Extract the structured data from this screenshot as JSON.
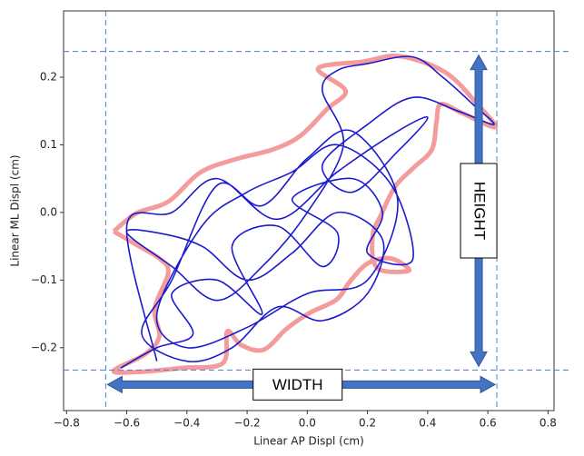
{
  "chart_data": {
    "type": "line",
    "xlabel": "Linear AP Displ (cm)",
    "ylabel": "Linear ML Displ (cm)",
    "xlim": [
      -0.81,
      0.82
    ],
    "ylim": [
      -0.293,
      0.298
    ],
    "xticks": [
      {
        "value": -0.8,
        "label": "−0.8"
      },
      {
        "value": -0.6,
        "label": "−0.6"
      },
      {
        "value": -0.4,
        "label": "−0.4"
      },
      {
        "value": -0.2,
        "label": "−0.2"
      },
      {
        "value": 0,
        "label": "0.0"
      },
      0.2,
      0.4,
      0.6,
      0.8
    ],
    "yticks": [
      {
        "value": -0.2,
        "label": "−0.2"
      },
      {
        "value": -0.1,
        "label": "−0.1"
      },
      {
        "value": 0,
        "label": "0.0"
      },
      0.1,
      0.2
    ],
    "series": [
      {
        "color": "#f28a8a",
        "x": [
          -0.643,
          -0.567,
          -0.462,
          -0.356,
          -0.236,
          -0.115,
          -0.024,
          0.066,
          0.127,
          0.036,
          0.187,
          0.308,
          0.459,
          0.565,
          0.625,
          0.519,
          0.444,
          0.429,
          0.414,
          0.353,
          0.293,
          0.248,
          0.217,
          0.232,
          0.338,
          0.278,
          0.202,
          0.142,
          0.097,
          0.006,
          -0.069,
          -0.145,
          -0.22,
          -0.266,
          -0.281,
          -0.417,
          -0.567,
          -0.643,
          -0.537,
          -0.492,
          -0.507,
          -0.462,
          -0.492,
          -0.567,
          -0.643
        ],
        "y": [
          -0.028,
          -0.001,
          0.016,
          0.059,
          0.079,
          0.093,
          0.113,
          0.153,
          0.18,
          0.213,
          0.223,
          0.231,
          0.207,
          0.16,
          0.126,
          0.146,
          0.16,
          0.133,
          0.093,
          0.066,
          0.039,
          -0.001,
          -0.035,
          -0.082,
          -0.086,
          -0.068,
          -0.075,
          -0.102,
          -0.129,
          -0.149,
          -0.172,
          -0.203,
          -0.196,
          -0.176,
          -0.223,
          -0.23,
          -0.236,
          -0.234,
          -0.209,
          -0.183,
          -0.142,
          -0.089,
          -0.068,
          -0.048,
          -0.028
        ]
      },
      {
        "color": "#1a1ad0",
        "x": [
          -0.62,
          -0.5,
          -0.38,
          -0.45,
          -0.3,
          -0.15,
          -0.25,
          -0.1,
          0.05,
          0.1,
          -0.05,
          0.15,
          0.25,
          0.2,
          0.35,
          0.28,
          0.1,
          -0.05,
          -0.2,
          -0.35,
          -0.5,
          -0.4,
          -0.2,
          0.0,
          0.2,
          0.3,
          0.15,
          0.0,
          -0.15,
          -0.3,
          -0.45,
          -0.55,
          -0.4,
          -0.25,
          -0.1,
          0.05,
          0.2,
          0.25,
          0.1,
          -0.05,
          -0.2,
          -0.35,
          -0.5,
          -0.6,
          -0.45,
          -0.3,
          -0.15,
          0.0,
          0.12,
          0.05,
          0.1,
          0.2,
          0.35,
          0.45,
          0.55,
          0.62,
          0.5,
          0.35,
          0.2,
          0.05,
          0.15,
          0.3,
          0.4,
          0.3,
          0.1,
          -0.1,
          -0.3,
          -0.45,
          -0.6,
          -0.5
        ],
        "y": [
          -0.23,
          -0.2,
          -0.18,
          -0.12,
          -0.1,
          -0.15,
          -0.05,
          -0.02,
          -0.08,
          -0.03,
          0.02,
          0.05,
          0.0,
          -0.06,
          -0.07,
          0.04,
          0.1,
          0.06,
          0.03,
          -0.02,
          -0.15,
          -0.2,
          -0.17,
          -0.12,
          -0.1,
          0.02,
          0.12,
          0.08,
          0.01,
          0.04,
          -0.1,
          -0.18,
          -0.22,
          -0.2,
          -0.14,
          -0.16,
          -0.12,
          -0.04,
          0.0,
          -0.06,
          -0.1,
          -0.05,
          -0.03,
          -0.03,
          -0.08,
          -0.13,
          -0.08,
          0.0,
          0.1,
          0.18,
          0.21,
          0.22,
          0.23,
          0.2,
          0.16,
          0.13,
          0.15,
          0.17,
          0.13,
          0.07,
          0.03,
          0.09,
          0.14,
          0.12,
          0.06,
          -0.01,
          0.05,
          0.0,
          -0.02,
          -0.22
        ]
      }
    ],
    "reference_lines": {
      "x": [
        -0.67,
        0.63
      ],
      "y": [
        -0.233,
        0.238
      ],
      "color": "#4a7fd4"
    },
    "width_label": "WIDTH",
    "height_label": "HEIGHT",
    "arrow_color": "#4472c4"
  }
}
